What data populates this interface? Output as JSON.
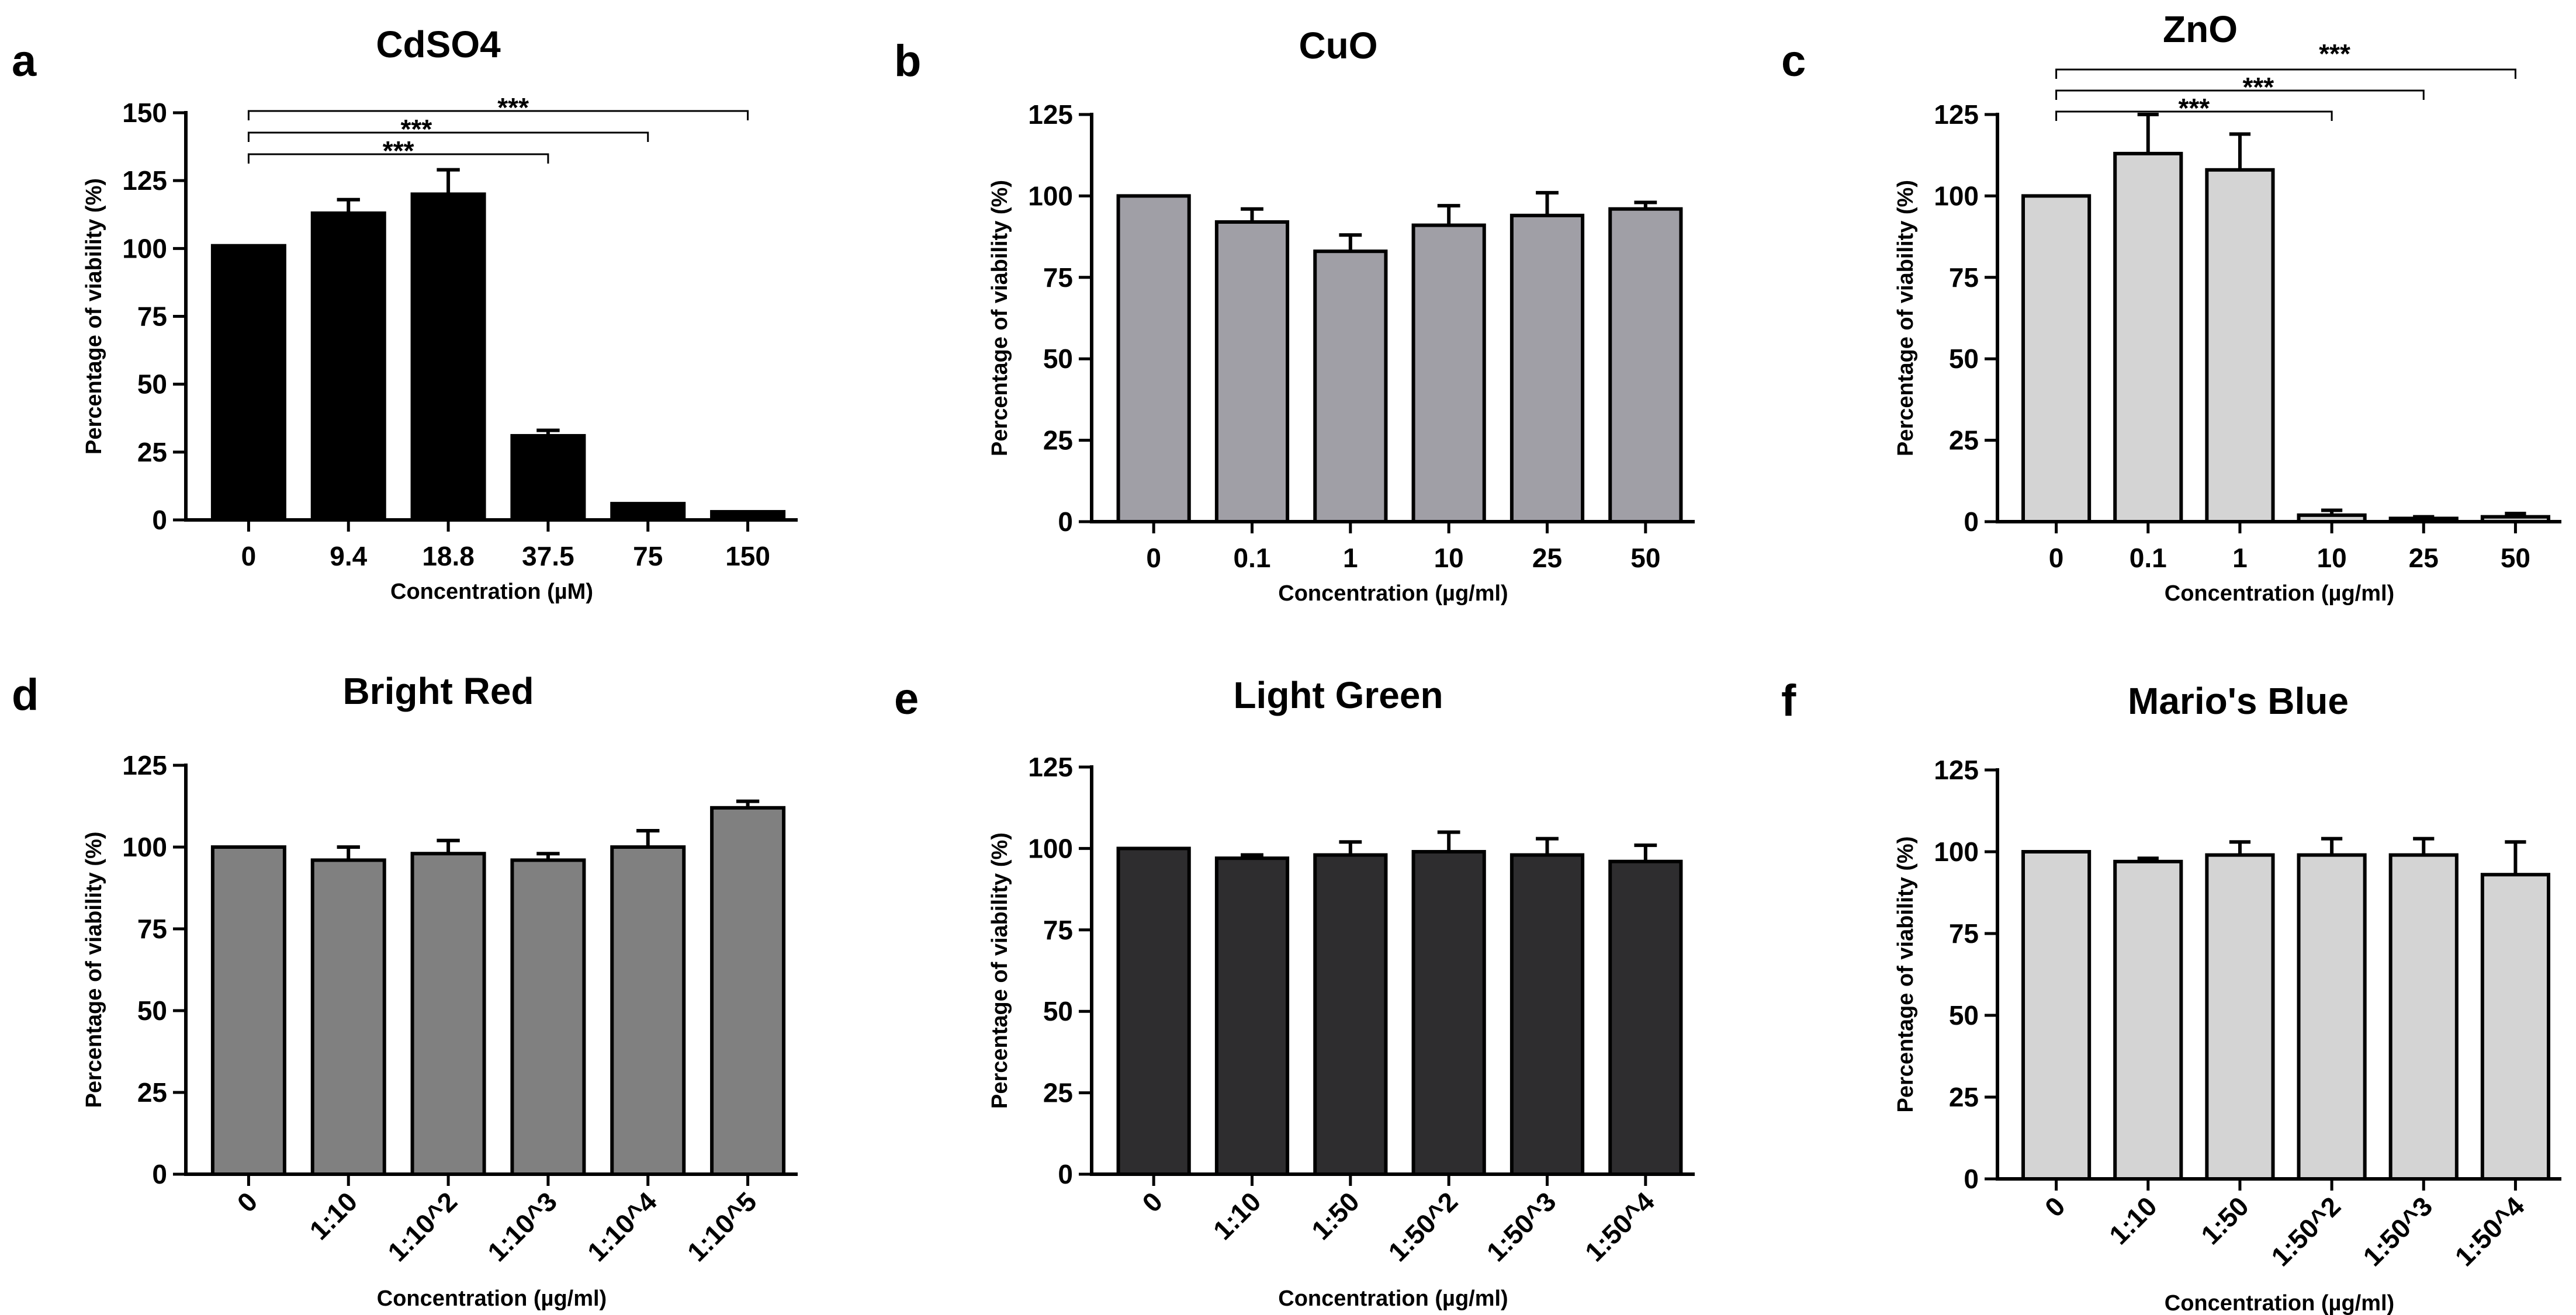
{
  "chart_data": [
    {
      "panel": "a",
      "type": "bar",
      "title": "CdSO4",
      "xlabel": "Concentration (µM)",
      "ylabel": "Percentage of viability (%)",
      "ylim": [
        0,
        150
      ],
      "yticks": [
        0,
        25,
        50,
        75,
        100,
        125,
        150
      ],
      "categories": [
        "0",
        "9.4",
        "18.8",
        "37.5",
        "75",
        "150"
      ],
      "values": [
        101,
        113,
        120,
        31,
        6,
        3
      ],
      "errors": [
        0,
        5,
        9,
        2,
        0,
        0
      ],
      "bar_color": "#000000",
      "rotate_labels": false,
      "significance": [
        {
          "from": 0,
          "to": 3,
          "label": "***"
        },
        {
          "from": 0,
          "to": 4,
          "label": "***"
        },
        {
          "from": 0,
          "to": 5,
          "label": "***"
        }
      ]
    },
    {
      "panel": "b",
      "type": "bar",
      "title": "CuO",
      "xlabel": "Concentration (µg/ml)",
      "ylabel": "Percentage of viability (%)",
      "ylim": [
        0,
        125
      ],
      "yticks": [
        0,
        25,
        50,
        75,
        100,
        125
      ],
      "categories": [
        "0",
        "0.1",
        "1",
        "10",
        "25",
        "50"
      ],
      "values": [
        100,
        92,
        83,
        91,
        94,
        96
      ],
      "errors": [
        0,
        4,
        5,
        6,
        7,
        2
      ],
      "bar_color": "#a09fa6",
      "rotate_labels": false,
      "significance": []
    },
    {
      "panel": "c",
      "type": "bar",
      "title": "ZnO",
      "xlabel": "Concentration (µg/ml)",
      "ylabel": "Percentage of viability (%)",
      "ylim": [
        0,
        125
      ],
      "yticks": [
        0,
        25,
        50,
        75,
        100,
        125
      ],
      "categories": [
        "0",
        "0.1",
        "1",
        "10",
        "25",
        "50"
      ],
      "values": [
        100,
        113,
        108,
        2,
        1,
        1.5
      ],
      "errors": [
        0,
        12,
        11,
        1.5,
        0.5,
        1
      ],
      "bar_color": "#d4d4d4",
      "rotate_labels": false,
      "significance": [
        {
          "from": 0,
          "to": 3,
          "label": "***"
        },
        {
          "from": 0,
          "to": 4,
          "label": "***"
        },
        {
          "from": 0,
          "to": 5,
          "label": "***"
        }
      ]
    },
    {
      "panel": "d",
      "type": "bar",
      "title": "Bright Red",
      "xlabel": "Concentration (µg/ml)",
      "ylabel": "Percentage of viability (%)",
      "ylim": [
        0,
        125
      ],
      "yticks": [
        0,
        25,
        50,
        75,
        100,
        125
      ],
      "categories": [
        "0",
        "1:10",
        "1:10^2",
        "1:10^3",
        "1:10^4",
        "1:10^5"
      ],
      "values": [
        100,
        96,
        98,
        96,
        100,
        112
      ],
      "errors": [
        0,
        4,
        4,
        2,
        5,
        2
      ],
      "bar_color": "#808080",
      "rotate_labels": true,
      "significance": []
    },
    {
      "panel": "e",
      "type": "bar",
      "title": "Light Green",
      "xlabel": "Concentration (µg/ml)",
      "ylabel": "Percentage of viability (%)",
      "ylim": [
        0,
        125
      ],
      "yticks": [
        0,
        25,
        50,
        75,
        100,
        125
      ],
      "categories": [
        "0",
        "1:10",
        "1:50",
        "1:50^2",
        "1:50^3",
        "1:50^4"
      ],
      "values": [
        100,
        97,
        98,
        99,
        98,
        96
      ],
      "errors": [
        0,
        1,
        4,
        6,
        5,
        5
      ],
      "bar_color": "#2e2d2f",
      "rotate_labels": true,
      "significance": []
    },
    {
      "panel": "f",
      "type": "bar",
      "title": "Mario's Blue",
      "xlabel": "Concentration (µg/ml)",
      "ylabel": "Percentage of viability (%)",
      "ylim": [
        0,
        125
      ],
      "yticks": [
        0,
        25,
        50,
        75,
        100,
        125
      ],
      "categories": [
        "0",
        "1:10",
        "1:50",
        "1:50^2",
        "1:50^3",
        "1:50^4"
      ],
      "values": [
        100,
        97,
        99,
        99,
        99,
        93
      ],
      "errors": [
        0,
        1,
        4,
        5,
        5,
        10
      ],
      "bar_color": "#d4d4d4",
      "rotate_labels": true,
      "significance": []
    }
  ]
}
